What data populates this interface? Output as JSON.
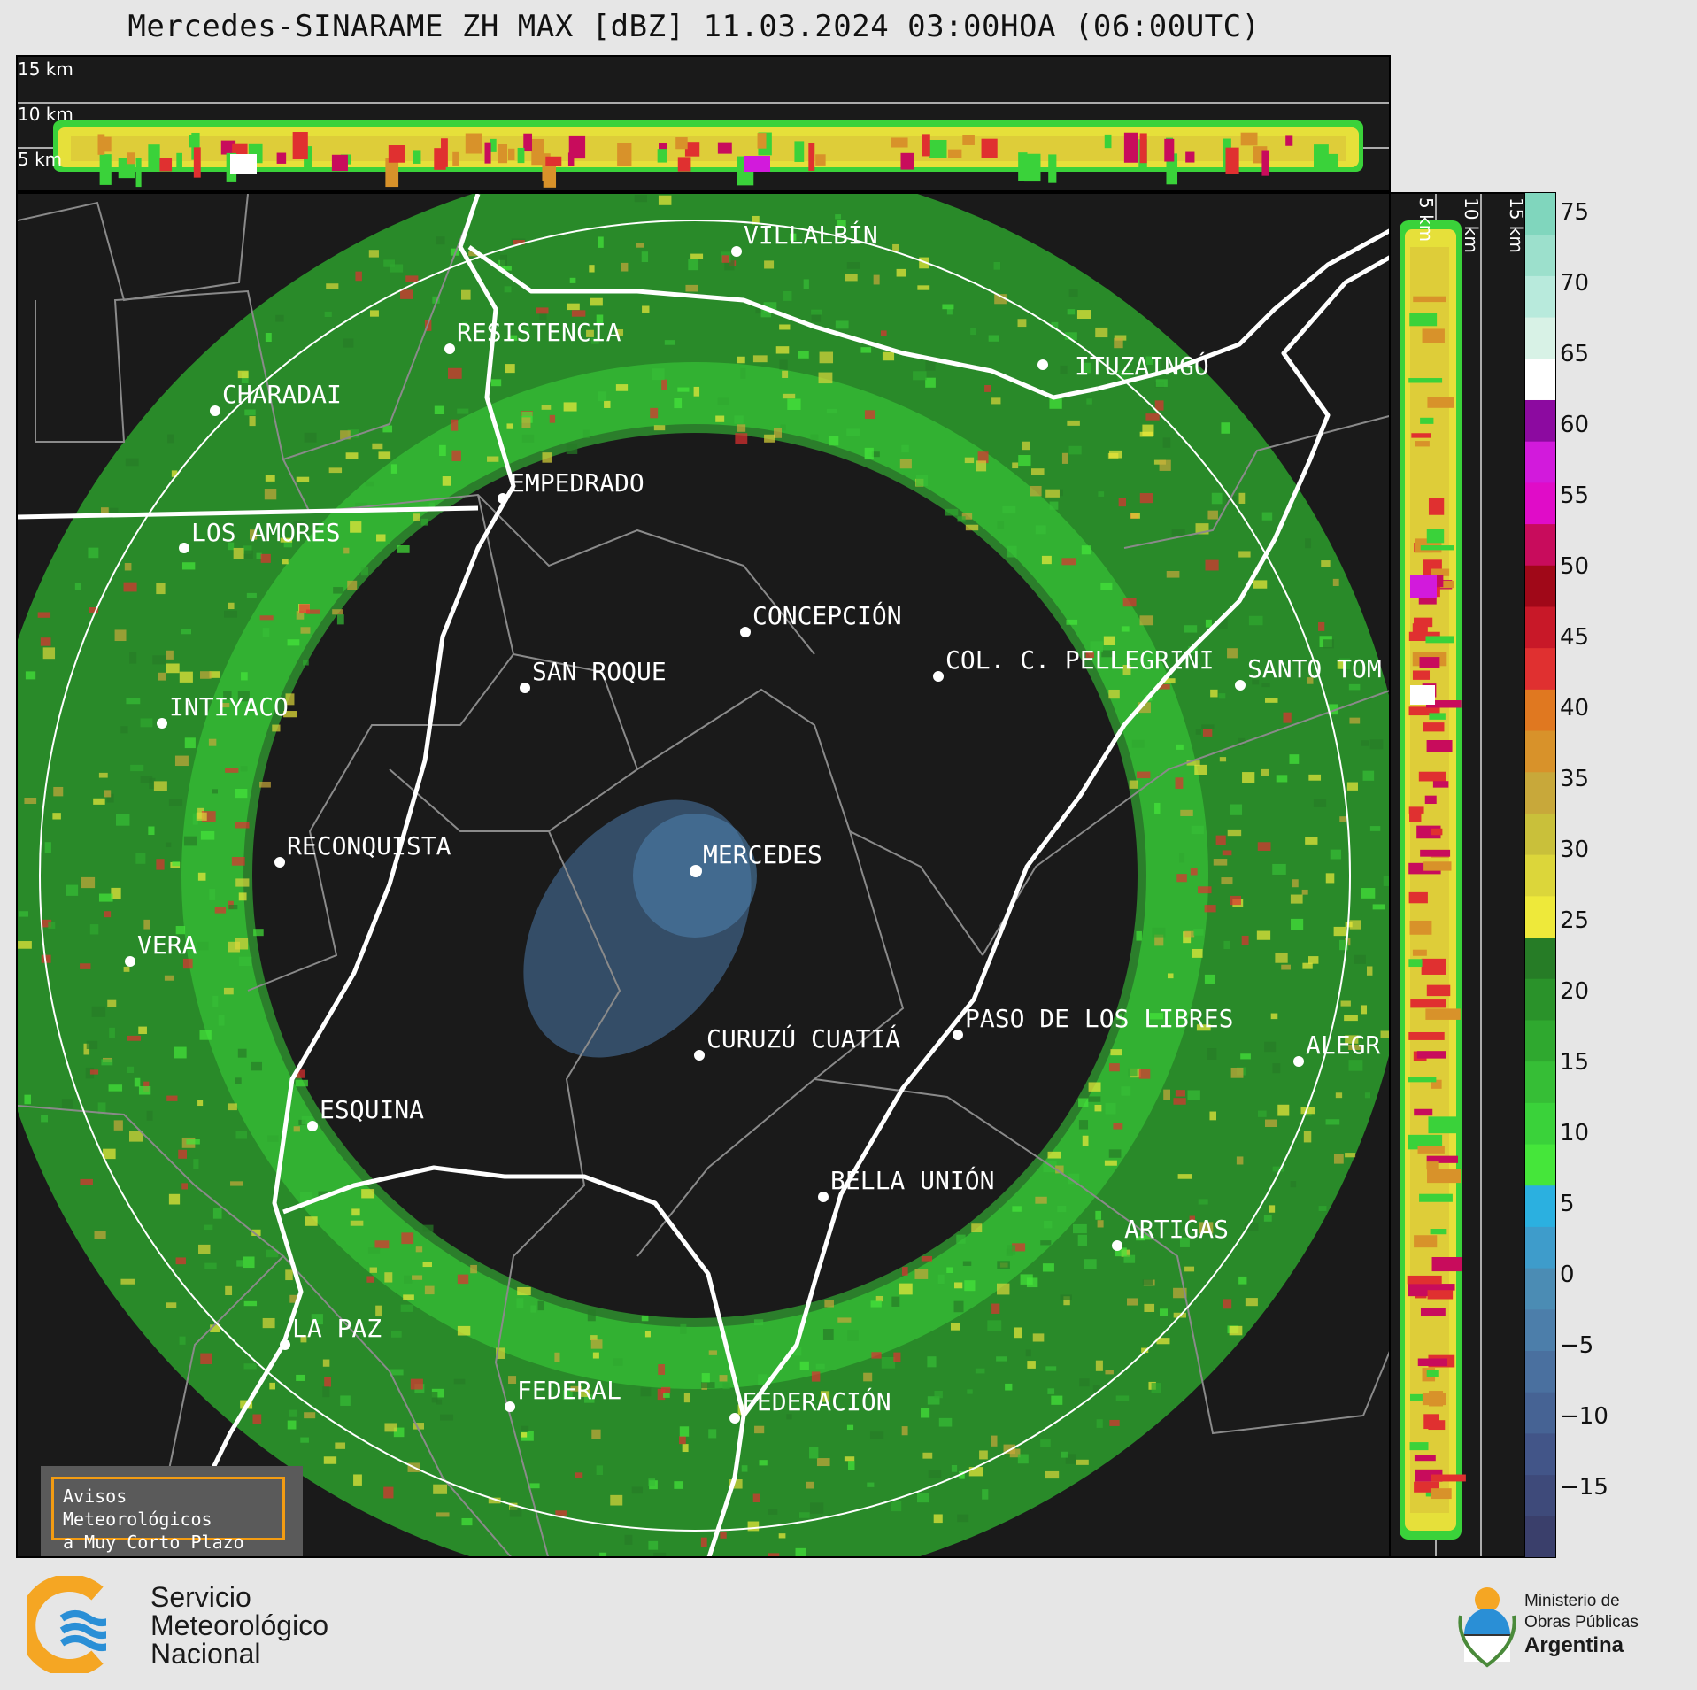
{
  "title": "Mercedes-SINARAME ZH MAX [dBZ] 11.03.2024 03:00HOA (06:00UTC)",
  "top_altitudes": [
    "15 km",
    "10 km",
    "5 km"
  ],
  "right_altitudes": [
    "5 km",
    "10 km",
    "15 km"
  ],
  "cities": [
    {
      "name": "VILLALBÍN"
    },
    {
      "name": "RESISTENCIA"
    },
    {
      "name": "CHARADAI"
    },
    {
      "name": "ITUZAINGÓ"
    },
    {
      "name": "EMPEDRADO"
    },
    {
      "name": "LOS AMORES"
    },
    {
      "name": "CONCEPCIÓN"
    },
    {
      "name": "SAN ROQUE"
    },
    {
      "name": "COL. C. PELLEGRINI"
    },
    {
      "name": "SANTO TOM"
    },
    {
      "name": "INTIYACO"
    },
    {
      "name": "MERCEDES"
    },
    {
      "name": "RECONQUISTA"
    },
    {
      "name": "VERA"
    },
    {
      "name": "CURUZÚ CUATIÁ"
    },
    {
      "name": "PASO DE LOS LIBRES"
    },
    {
      "name": "ALEGR"
    },
    {
      "name": "ESQUINA"
    },
    {
      "name": "BELLA UNIÓN"
    },
    {
      "name": "ARTIGAS"
    },
    {
      "name": "LA PAZ"
    },
    {
      "name": "FEDERAL"
    },
    {
      "name": "FEDERACIÓN"
    }
  ],
  "alert_box": {
    "line1": "Avisos Meteorológicos",
    "line2": "a Muy Corto Plazo"
  },
  "colorbar": {
    "ticks": [
      "75",
      "70",
      "65",
      "60",
      "55",
      "50",
      "45",
      "40",
      "35",
      "30",
      "25",
      "20",
      "15",
      "10",
      "5",
      "0",
      "−5",
      "−10",
      "−15"
    ],
    "colors": [
      "#3a3f6b",
      "#3e4a7a",
      "#425588",
      "#466394",
      "#4a709f",
      "#4c7eaa",
      "#4b8cb4",
      "#3e9ccb",
      "#2bb0e0",
      "#45e63a",
      "#3ad23a",
      "#36be36",
      "#2fa82f",
      "#2a922a",
      "#267c26",
      "#eee93a",
      "#dcd63a",
      "#c9c03a",
      "#c8a83a",
      "#d8922a",
      "#e07820",
      "#e03030",
      "#c81828",
      "#a00818",
      "#c80c5c",
      "#e00cc8",
      "#d21adc",
      "#8c0aa0",
      "#ffffff",
      "#d8f2e6",
      "#b8eadc",
      "#9ce0cc",
      "#80d6bd"
    ]
  },
  "logos": {
    "smn": {
      "line1": "Servicio",
      "line2": "Meteorológico",
      "line3": "Nacional"
    },
    "ministerio": {
      "line1": "Ministerio de",
      "line2": "Obras Públicas",
      "line3": "Argentina"
    }
  }
}
